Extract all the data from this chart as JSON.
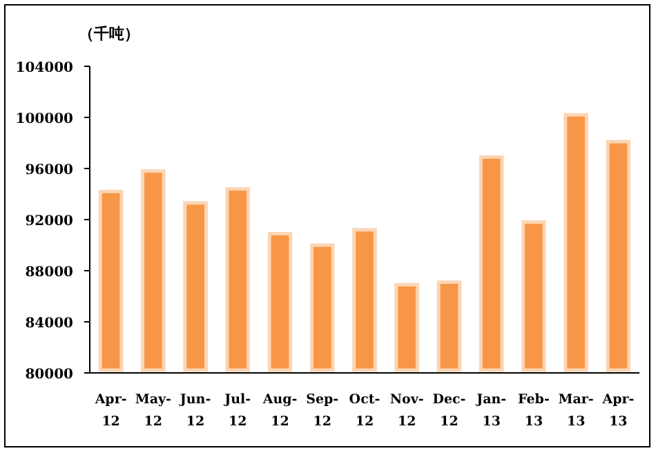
{
  "chart_data": {
    "type": "bar",
    "ylabel": "（千吨）",
    "categories": [
      "Apr-12",
      "May-12",
      "Jun-12",
      "Jul-12",
      "Aug-12",
      "Sep-12",
      "Oct-12",
      "Nov-12",
      "Dec-12",
      "Jan-13",
      "Feb-13",
      "Mar-13",
      "Apr-13"
    ],
    "values": [
      94200,
      95800,
      93300,
      94400,
      90900,
      90000,
      91200,
      86900,
      87100,
      96900,
      91800,
      100200,
      98100
    ],
    "color": "#f79646",
    "ylim": [
      80000,
      104000
    ],
    "yticks": [
      80000,
      84000,
      88000,
      92000,
      96000,
      100000,
      104000
    ],
    "grid": false
  }
}
